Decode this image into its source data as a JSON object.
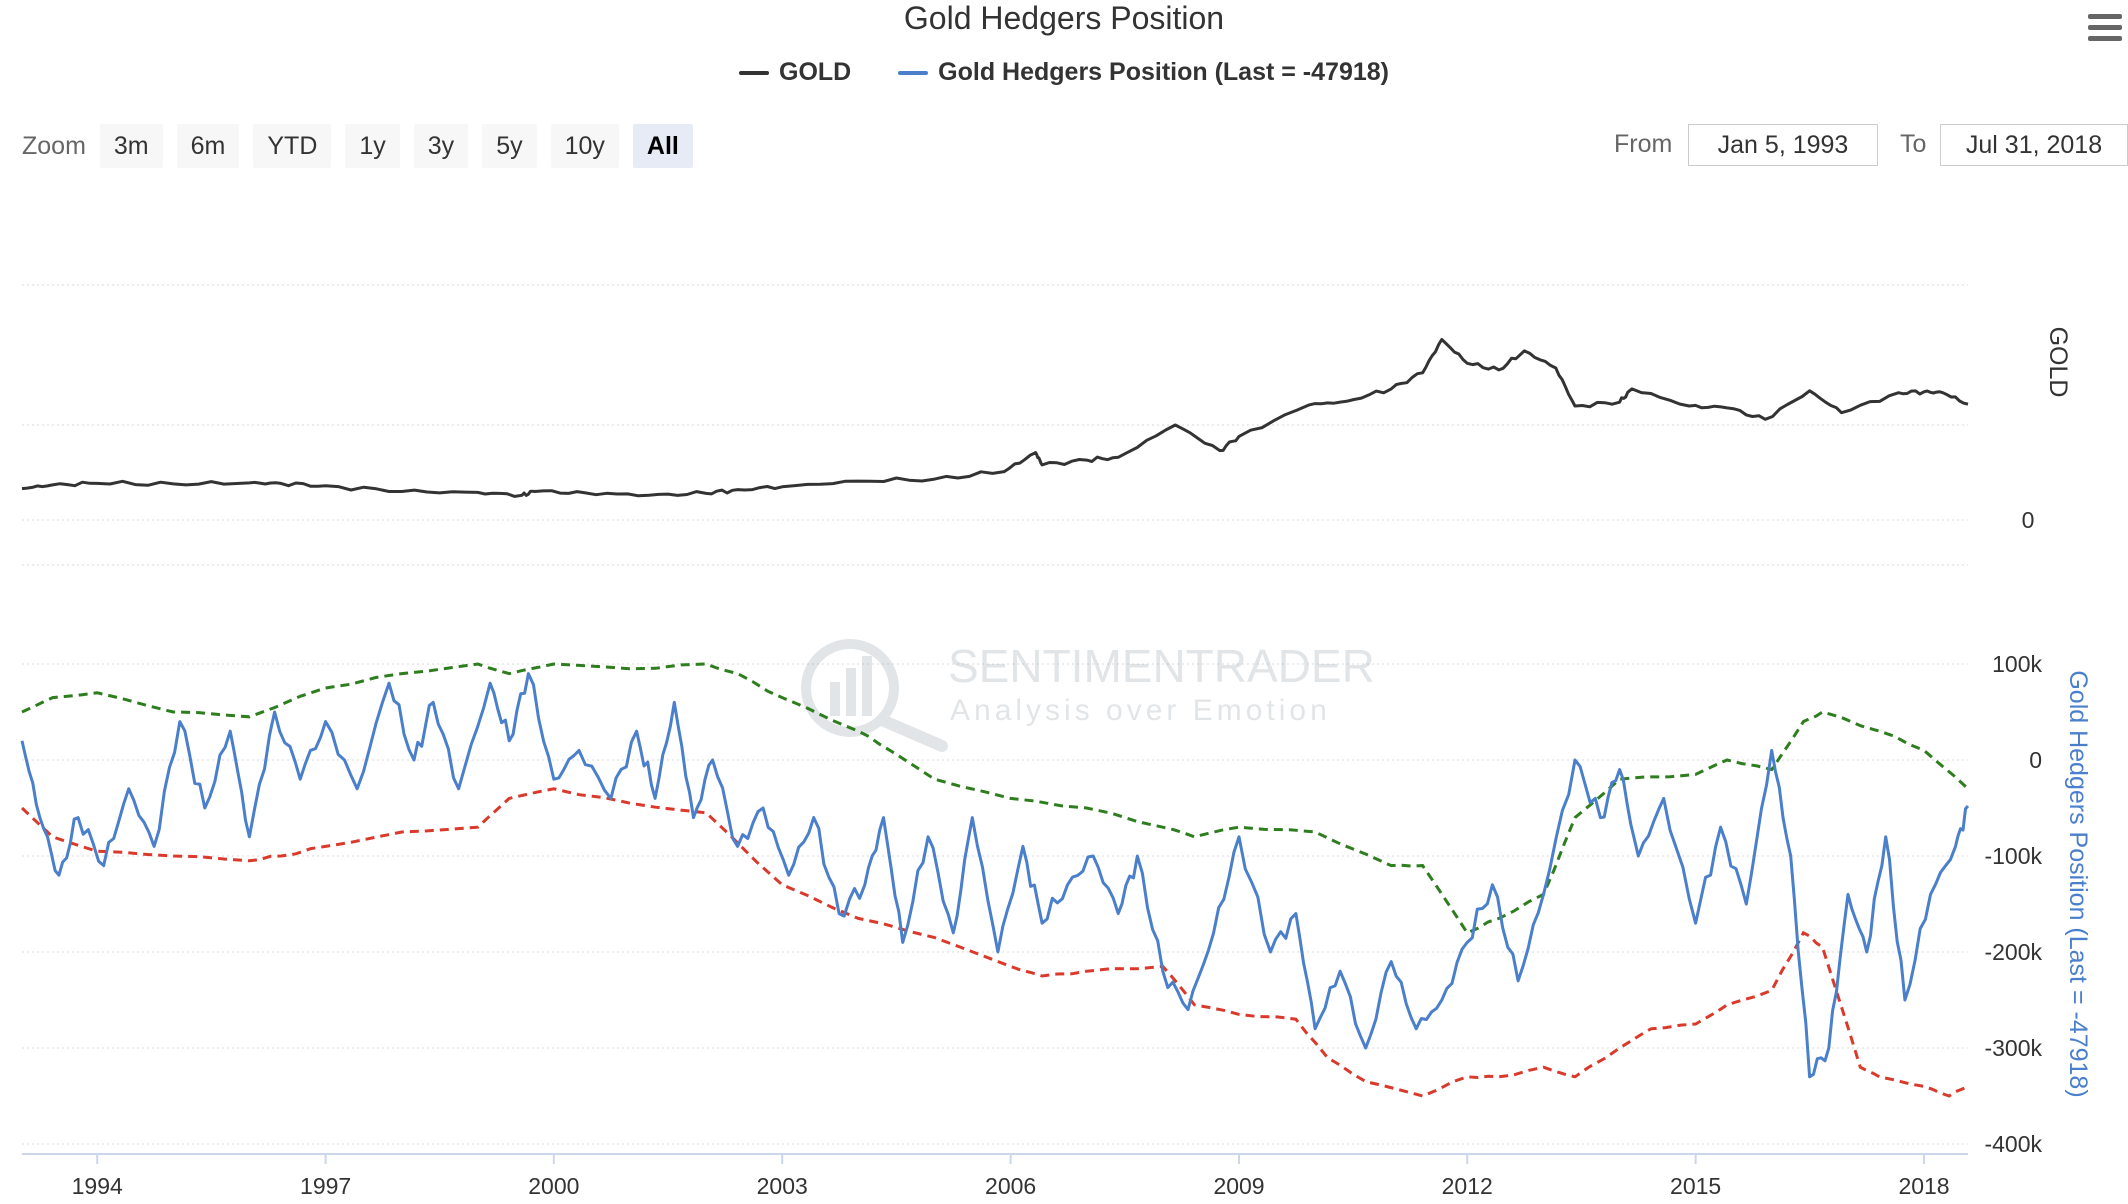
{
  "chart": {
    "title": "Gold Hedgers Position"
  },
  "legend": {
    "gold_label": "GOLD",
    "hedgers_label": "Gold Hedgers Position (Last = -47918)"
  },
  "zoom": {
    "label": "Zoom",
    "buttons": [
      "3m",
      "6m",
      "YTD",
      "1y",
      "3y",
      "5y",
      "10y",
      "All"
    ],
    "active": "All"
  },
  "range": {
    "from_label": "From",
    "from_value": "Jan 5, 1993",
    "to_label": "To",
    "to_value": "Jul 31, 2018"
  },
  "watermark": {
    "brand": "SENTIMENTRADER",
    "tagline": "Analysis over Emotion"
  },
  "colors": {
    "gold_line": "#333333",
    "hedgers_line": "#4a7fcb",
    "upper_band": "#2e7d1e",
    "lower_band": "#d93a2b",
    "grid": "#d9d9d9",
    "axis_text": "#333333",
    "hedgers_axis_title": "#4a7fcb"
  },
  "chart_data": [
    {
      "type": "line",
      "name": "GOLD panel",
      "ylabel": "GOLD",
      "y_ticks": [
        "0"
      ],
      "x_range": [
        "1993-01-05",
        "2018-07-31"
      ],
      "series": [
        {
          "name": "GOLD",
          "points": [
            [
              "1993-01-05",
              330
            ],
            [
              "1993-06-01",
              370
            ],
            [
              "1994-01-01",
              385
            ],
            [
              "1995-01-01",
              380
            ],
            [
              "1996-01-01",
              390
            ],
            [
              "1996-06-01",
              385
            ],
            [
              "1997-01-01",
              360
            ],
            [
              "1998-01-01",
              300
            ],
            [
              "1999-01-01",
              290
            ],
            [
              "1999-08-01",
              260
            ],
            [
              "1999-10-01",
              300
            ],
            [
              "2000-06-01",
              285
            ],
            [
              "2001-04-01",
              260
            ],
            [
              "2002-01-01",
              280
            ],
            [
              "2002-06-01",
              320
            ],
            [
              "2003-01-01",
              350
            ],
            [
              "2004-01-01",
              410
            ],
            [
              "2005-01-01",
              430
            ],
            [
              "2005-12-01",
              510
            ],
            [
              "2006-05-01",
              710
            ],
            [
              "2006-06-01",
              580
            ],
            [
              "2007-01-01",
              630
            ],
            [
              "2007-06-01",
              660
            ],
            [
              "2008-03-01",
              1000
            ],
            [
              "2008-10-01",
              730
            ],
            [
              "2009-01-01",
              880
            ],
            [
              "2009-12-01",
              1210
            ],
            [
              "2010-06-01",
              1250
            ],
            [
              "2011-01-01",
              1380
            ],
            [
              "2011-06-01",
              1550
            ],
            [
              "2011-09-01",
              1900
            ],
            [
              "2012-01-01",
              1650
            ],
            [
              "2012-06-01",
              1580
            ],
            [
              "2012-10-01",
              1780
            ],
            [
              "2013-03-01",
              1600
            ],
            [
              "2013-06-01",
              1200
            ],
            [
              "2014-01-01",
              1240
            ],
            [
              "2014-03-01",
              1380
            ],
            [
              "2014-12-01",
              1200
            ],
            [
              "2015-06-01",
              1180
            ],
            [
              "2015-12-01",
              1060
            ],
            [
              "2016-07-01",
              1360
            ],
            [
              "2016-12-01",
              1130
            ],
            [
              "2017-09-01",
              1340
            ],
            [
              "2018-01-01",
              1350
            ],
            [
              "2018-04-01",
              1340
            ],
            [
              "2018-07-31",
              1220
            ]
          ]
        }
      ]
    },
    {
      "type": "line",
      "name": "Hedgers panel",
      "ylabel": "Gold Hedgers Position (Last = -47918)",
      "x_ticks": [
        "1994",
        "1997",
        "2000",
        "2003",
        "2006",
        "2009",
        "2012",
        "2015",
        "2018"
      ],
      "y_ticks": [
        "100k",
        "0",
        "-100k",
        "-200k",
        "-300k",
        "-400k"
      ],
      "ylim": [
        -400000,
        100000
      ],
      "grid": true,
      "series": [
        {
          "name": "Gold Hedgers Position",
          "last": -47918,
          "points": [
            [
              "1993-01-05",
              20000
            ],
            [
              "1993-04-01",
              -60000
            ],
            [
              "1993-07-01",
              -120000
            ],
            [
              "1993-10-01",
              -60000
            ],
            [
              "1994-02-01",
              -110000
            ],
            [
              "1994-06-01",
              -30000
            ],
            [
              "1994-10-01",
              -90000
            ],
            [
              "1995-02-01",
              40000
            ],
            [
              "1995-06-01",
              -50000
            ],
            [
              "1995-10-01",
              30000
            ],
            [
              "1996-01-01",
              -80000
            ],
            [
              "1996-05-01",
              50000
            ],
            [
              "1996-09-01",
              -20000
            ],
            [
              "1997-01-01",
              40000
            ],
            [
              "1997-06-01",
              -30000
            ],
            [
              "1997-11-01",
              80000
            ],
            [
              "1998-03-01",
              0
            ],
            [
              "1998-06-01",
              60000
            ],
            [
              "1998-10-01",
              -30000
            ],
            [
              "1999-03-01",
              80000
            ],
            [
              "1999-06-01",
              20000
            ],
            [
              "1999-09-01",
              90000
            ],
            [
              "2000-01-01",
              -20000
            ],
            [
              "2000-05-01",
              10000
            ],
            [
              "2000-10-01",
              -40000
            ],
            [
              "2001-02-01",
              30000
            ],
            [
              "2001-05-01",
              -40000
            ],
            [
              "2001-08-01",
              60000
            ],
            [
              "2001-11-01",
              -60000
            ],
            [
              "2002-02-01",
              0
            ],
            [
              "2002-06-01",
              -90000
            ],
            [
              "2002-10-01",
              -50000
            ],
            [
              "2003-02-01",
              -120000
            ],
            [
              "2003-06-01",
              -60000
            ],
            [
              "2003-10-01",
              -160000
            ],
            [
              "2004-02-01",
              -130000
            ],
            [
              "2004-05-01",
              -60000
            ],
            [
              "2004-08-01",
              -190000
            ],
            [
              "2004-12-01",
              -80000
            ],
            [
              "2005-04-01",
              -180000
            ],
            [
              "2005-07-01",
              -60000
            ],
            [
              "2005-11-01",
              -200000
            ],
            [
              "2006-03-01",
              -90000
            ],
            [
              "2006-06-01",
              -170000
            ],
            [
              "2006-10-01",
              -130000
            ],
            [
              "2007-02-01",
              -100000
            ],
            [
              "2007-06-01",
              -160000
            ],
            [
              "2007-09-01",
              -100000
            ],
            [
              "2008-01-01",
              -220000
            ],
            [
              "2008-05-01",
              -260000
            ],
            [
              "2008-09-01",
              -180000
            ],
            [
              "2009-01-01",
              -80000
            ],
            [
              "2009-06-01",
              -200000
            ],
            [
              "2009-10-01",
              -160000
            ],
            [
              "2010-01-01",
              -280000
            ],
            [
              "2010-05-01",
              -220000
            ],
            [
              "2010-09-01",
              -300000
            ],
            [
              "2011-01-01",
              -210000
            ],
            [
              "2011-05-01",
              -280000
            ],
            [
              "2011-09-01",
              -250000
            ],
            [
              "2012-01-01",
              -190000
            ],
            [
              "2012-05-01",
              -130000
            ],
            [
              "2012-09-01",
              -230000
            ],
            [
              "2013-01-01",
              -140000
            ],
            [
              "2013-06-01",
              0
            ],
            [
              "2013-10-01",
              -60000
            ],
            [
              "2014-01-01",
              -10000
            ],
            [
              "2014-04-01",
              -100000
            ],
            [
              "2014-08-01",
              -40000
            ],
            [
              "2015-01-01",
              -170000
            ],
            [
              "2015-05-01",
              -70000
            ],
            [
              "2015-09-01",
              -150000
            ],
            [
              "2016-01-01",
              10000
            ],
            [
              "2016-04-01",
              -100000
            ],
            [
              "2016-07-01",
              -330000
            ],
            [
              "2016-10-01",
              -300000
            ],
            [
              "2017-01-01",
              -140000
            ],
            [
              "2017-04-01",
              -200000
            ],
            [
              "2017-07-01",
              -80000
            ],
            [
              "2017-10-01",
              -250000
            ],
            [
              "2018-02-01",
              -140000
            ],
            [
              "2018-06-01",
              -90000
            ],
            [
              "2018-07-31",
              -47918
            ]
          ]
        },
        {
          "name": "Upper band",
          "points": [
            [
              "1993-01-05",
              50000
            ],
            [
              "1993-06-01",
              65000
            ],
            [
              "1994-01-01",
              70000
            ],
            [
              "1995-01-01",
              50000
            ],
            [
              "1996-01-01",
              45000
            ],
            [
              "1997-01-01",
              75000
            ],
            [
              "1998-01-01",
              90000
            ],
            [
              "1999-01-01",
              100000
            ],
            [
              "1999-06-01",
              90000
            ],
            [
              "2000-01-01",
              100000
            ],
            [
              "2001-01-01",
              95000
            ],
            [
              "2002-01-01",
              100000
            ],
            [
              "2002-06-01",
              90000
            ],
            [
              "2003-01-01",
              65000
            ],
            [
              "2004-01-01",
              30000
            ],
            [
              "2004-06-01",
              10000
            ],
            [
              "2005-01-01",
              -20000
            ],
            [
              "2006-01-01",
              -40000
            ],
            [
              "2007-01-01",
              -50000
            ],
            [
              "2008-01-01",
              -70000
            ],
            [
              "2008-06-01",
              -80000
            ],
            [
              "2009-01-01",
              -70000
            ],
            [
              "2010-01-01",
              -75000
            ],
            [
              "2011-01-01",
              -110000
            ],
            [
              "2011-06-01",
              -110000
            ],
            [
              "2012-01-01",
              -180000
            ],
            [
              "2012-06-01",
              -165000
            ],
            [
              "2013-01-01",
              -140000
            ],
            [
              "2013-06-01",
              -60000
            ],
            [
              "2014-01-01",
              -20000
            ],
            [
              "2015-01-01",
              -15000
            ],
            [
              "2015-06-01",
              0
            ],
            [
              "2016-01-01",
              -10000
            ],
            [
              "2016-06-01",
              40000
            ],
            [
              "2016-09-01",
              50000
            ],
            [
              "2017-06-01",
              30000
            ],
            [
              "2018-01-01",
              10000
            ],
            [
              "2018-07-31",
              -30000
            ]
          ]
        },
        {
          "name": "Lower band",
          "points": [
            [
              "1993-01-05",
              -50000
            ],
            [
              "1993-06-01",
              -80000
            ],
            [
              "1994-01-01",
              -95000
            ],
            [
              "1995-01-01",
              -100000
            ],
            [
              "1996-01-01",
              -105000
            ],
            [
              "1996-06-01",
              -100000
            ],
            [
              "1997-01-01",
              -90000
            ],
            [
              "1998-01-01",
              -75000
            ],
            [
              "1999-01-01",
              -70000
            ],
            [
              "1999-06-01",
              -40000
            ],
            [
              "2000-01-01",
              -30000
            ],
            [
              "2001-01-01",
              -45000
            ],
            [
              "2002-01-01",
              -55000
            ],
            [
              "2003-01-01",
              -130000
            ],
            [
              "2004-01-01",
              -165000
            ],
            [
              "2005-01-01",
              -185000
            ],
            [
              "2006-01-01",
              -215000
            ],
            [
              "2006-06-01",
              -225000
            ],
            [
              "2007-01-01",
              -220000
            ],
            [
              "2008-01-01",
              -215000
            ],
            [
              "2008-06-01",
              -255000
            ],
            [
              "2009-01-01",
              -265000
            ],
            [
              "2009-10-01",
              -270000
            ],
            [
              "2010-03-01",
              -310000
            ],
            [
              "2010-09-01",
              -335000
            ],
            [
              "2011-06-01",
              -350000
            ],
            [
              "2012-01-01",
              -330000
            ],
            [
              "2012-06-01",
              -330000
            ],
            [
              "2013-01-01",
              -320000
            ],
            [
              "2013-06-01",
              -330000
            ],
            [
              "2014-01-01",
              -300000
            ],
            [
              "2014-06-01",
              -280000
            ],
            [
              "2015-01-01",
              -275000
            ],
            [
              "2015-06-01",
              -255000
            ],
            [
              "2016-01-01",
              -240000
            ],
            [
              "2016-06-01",
              -180000
            ],
            [
              "2016-09-01",
              -195000
            ],
            [
              "2017-03-01",
              -320000
            ],
            [
              "2017-06-01",
              -330000
            ],
            [
              "2018-01-01",
              -340000
            ],
            [
              "2018-05-01",
              -350000
            ],
            [
              "2018-07-31",
              -340000
            ]
          ]
        }
      ]
    }
  ]
}
